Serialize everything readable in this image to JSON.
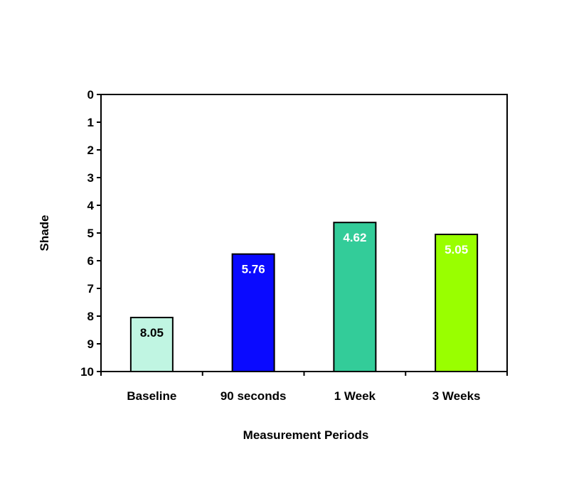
{
  "chart_data": {
    "type": "bar",
    "title": "",
    "xlabel": "Measurement Periods",
    "ylabel": "Shade",
    "ylim": [
      0,
      10
    ],
    "y_inverted": true,
    "yticks": [
      "0",
      "1",
      "2",
      "3",
      "4",
      "5",
      "6",
      "7",
      "8",
      "9",
      "10"
    ],
    "categories": [
      "Baseline",
      "90 seconds",
      "1 Week",
      "3 Weeks"
    ],
    "values": [
      8.05,
      5.76,
      4.62,
      5.05
    ],
    "labels": [
      "8.05",
      "5.76",
      "4.62",
      "5.05"
    ],
    "colors": [
      "#c0f5e2",
      "#0a0aff",
      "#33cc99",
      "#99ff00"
    ],
    "label_colors": [
      "#000000",
      "#ffffff",
      "#ffffff",
      "#ffffff"
    ],
    "grid": false,
    "legend": "none"
  }
}
